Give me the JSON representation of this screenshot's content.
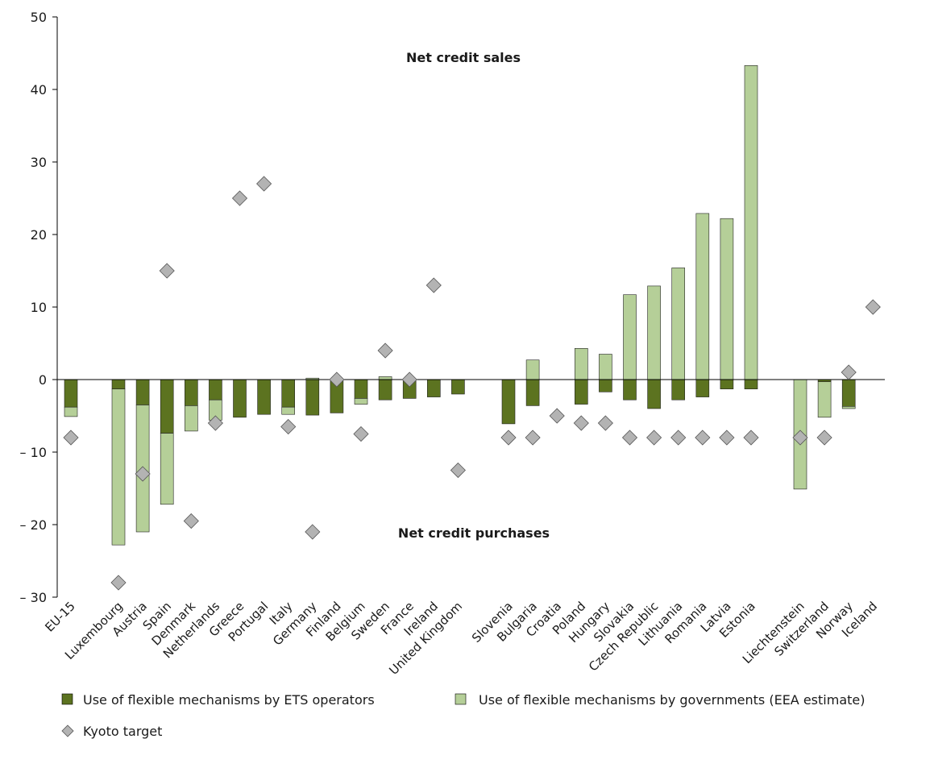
{
  "chart_data": {
    "type": "bar",
    "stacked": true,
    "categories": [
      "EU-15",
      "Luxembourg",
      "Austria",
      "Spain",
      "Denmark",
      "Netherlands",
      "Greece",
      "Portugal",
      "Italy",
      "Germany",
      "Finland",
      "Belgium",
      "Sweden",
      "France",
      "Ireland",
      "United Kingdom",
      "Slovenia",
      "Bulgaria",
      "Croatia",
      "Poland",
      "Hungary",
      "Slovakia",
      "Czech Republic",
      "Lithuania",
      "Romania",
      "Latvia",
      "Estonia",
      "Liechtenstein",
      "Switzerland",
      "Norway",
      "Iceland"
    ],
    "series": [
      {
        "name": "Use of flexible mechanisms by ETS operators",
        "color": "#5c7320",
        "values": [
          -3.8,
          -1.3,
          -3.5,
          -7.4,
          -3.6,
          -2.8,
          -5.2,
          -4.8,
          -3.8,
          -4.9,
          -4.6,
          -2.6,
          -2.8,
          -2.6,
          -2.4,
          -2.0,
          -6.1,
          -3.6,
          0,
          -3.4,
          -1.7,
          -2.8,
          -4.0,
          -2.8,
          -2.4,
          -1.3,
          -1.3,
          0,
          -0.3,
          -3.7,
          0
        ]
      },
      {
        "name": "Use of flexible mechanisms by governments (EEA estimate)",
        "color": "#b5cf98",
        "values": [
          -1.3,
          -21.5,
          -17.5,
          -9.8,
          -3.5,
          -2.8,
          0,
          0,
          -1.0,
          0.2,
          0,
          -0.8,
          0.4,
          0,
          0,
          0,
          0,
          2.7,
          0,
          4.3,
          3.5,
          11.7,
          12.9,
          15.4,
          22.9,
          22.2,
          43.3,
          -15.1,
          -4.9,
          -0.3,
          0
        ]
      }
    ],
    "scatter_series": {
      "name": "Kyoto target",
      "color": "#b3b3b3",
      "values": [
        -8,
        -28,
        -13,
        15,
        -19.5,
        -6,
        25,
        27,
        -6.5,
        -21,
        0,
        -7.5,
        4,
        0,
        13,
        -12.5,
        -8,
        -8,
        -5,
        -6,
        -6,
        -8,
        -8,
        -8,
        -8,
        -8,
        -8,
        -8,
        -8,
        1,
        10
      ]
    },
    "annotations": [
      "Net credit sales",
      "Net credit purchases"
    ],
    "ylim": [
      -30,
      50
    ],
    "yticks": [
      {
        "value": 50,
        "label": "50"
      },
      {
        "value": 40,
        "label": "40"
      },
      {
        "value": 30,
        "label": "30"
      },
      {
        "value": 20,
        "label": "20"
      },
      {
        "value": 10,
        "label": "10"
      },
      {
        "value": 0,
        "label": "0"
      },
      {
        "value": -10,
        "label": "– 10"
      },
      {
        "value": -20,
        "label": "– 20"
      },
      {
        "value": -30,
        "label": "– 30"
      }
    ],
    "grid": false,
    "legend_position": "bottom"
  }
}
